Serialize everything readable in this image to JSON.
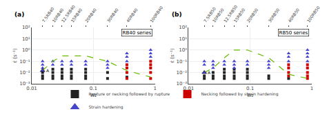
{
  "chart_data": [
    {
      "type": "scatter",
      "title": "(a)",
      "subtitle": "RB40 series",
      "xlabel": "w₂",
      "ylabel": "ε̇ (s⁻¹)",
      "log": true,
      "grid": true,
      "legend": "bottom",
      "xlim": [
        0.01,
        1.0
      ],
      "ylim": [
        0.001,
        100
      ],
      "xticks": [
        0.01,
        0.1,
        1
      ],
      "yticks": [
        {
          "value": 0.001,
          "label": "10⁻³"
        },
        {
          "value": 0.01,
          "label": "10⁻²"
        },
        {
          "value": 0.1,
          "label": "10⁻¹"
        },
        {
          "value": 1,
          "label": "10⁰"
        },
        {
          "value": 10,
          "label": "10¹"
        },
        {
          "value": 100,
          "label": "10²"
        }
      ],
      "x2ticks": [
        {
          "value": 0.015,
          "label": "7.5RB40"
        },
        {
          "value": 0.022,
          "label": "10RB40"
        },
        {
          "value": 0.031,
          "label": "12.5RB40"
        },
        {
          "value": 0.044,
          "label": "15RB40"
        },
        {
          "value": 0.075,
          "label": "20RB40"
        },
        {
          "value": 0.17,
          "label": "30RB40"
        },
        {
          "value": 0.35,
          "label": "40RB40"
        },
        {
          "value": 0.85,
          "label": "100RB40"
        }
      ],
      "series": [
        {
          "name": "Rupture or necking followed by rupture",
          "color": "#222222",
          "marker": "square",
          "x": [
            0.015,
            0.015,
            0.015,
            0.022,
            0.022,
            0.022,
            0.022,
            0.031,
            0.031,
            0.031,
            0.031,
            0.044,
            0.044,
            0.044,
            0.044,
            0.075,
            0.075,
            0.075,
            0.075,
            0.17,
            0.17,
            0.35
          ],
          "values": [
            0.003,
            0.005,
            0.01,
            0.003,
            0.005,
            0.01,
            0.02,
            0.003,
            0.005,
            0.01,
            0.02,
            0.003,
            0.005,
            0.01,
            0.02,
            0.003,
            0.005,
            0.01,
            0.02,
            0.003,
            0.01,
            0.004
          ]
        },
        {
          "name": "Necking followed by strain hardening",
          "color": "#cc0000",
          "marker": "square",
          "x": [
            0.35,
            0.35,
            0.35,
            0.35,
            0.85,
            0.85,
            0.85,
            0.85,
            0.85
          ],
          "values": [
            0.003,
            0.01,
            0.025,
            0.05,
            0.003,
            0.01,
            0.025,
            0.05,
            0.1
          ]
        },
        {
          "name": "Strain hardening",
          "color": "#4444cc",
          "marker": "triangle",
          "x": [
            0.015,
            0.015,
            0.015,
            0.022,
            0.022,
            0.031,
            0.031,
            0.044,
            0.044,
            0.075,
            0.075,
            0.17,
            0.17,
            0.17,
            0.35,
            0.35,
            0.35,
            0.85,
            0.85,
            0.85
          ],
          "values": [
            0.025,
            0.05,
            0.1,
            0.05,
            0.1,
            0.05,
            0.1,
            0.05,
            0.1,
            0.05,
            0.1,
            0.025,
            0.05,
            0.1,
            0.1,
            0.25,
            0.5,
            0.25,
            0.5,
            1.0
          ]
        },
        {
          "type": "line",
          "color": "#66bb00",
          "line_style": "dashed",
          "x": [
            0.015,
            0.022,
            0.031,
            0.044,
            0.075,
            0.17,
            0.35,
            0.85
          ],
          "values": [
            0.015,
            0.1,
            0.3,
            0.3,
            0.3,
            0.1,
            0.015,
            0.004
          ]
        }
      ],
      "annotations": [
        {
          "text": "A",
          "x": 0.015,
          "y": 0.015,
          "color": "#4444cc",
          "marker": "triangle"
        }
      ]
    },
    {
      "type": "scatter",
      "title": "(b)",
      "subtitle": "RB50 series",
      "xlabel": "w₂",
      "ylabel": "ε̇ (s⁻¹)",
      "log": true,
      "grid": true,
      "legend": "bottom",
      "xlim": [
        0.01,
        1.0
      ],
      "ylim": [
        0.001,
        100
      ],
      "xticks": [
        0.01,
        0.1,
        1
      ],
      "yticks": [
        {
          "value": 0.001,
          "label": "10⁻³"
        },
        {
          "value": 0.01,
          "label": "10⁻²"
        },
        {
          "value": 0.1,
          "label": "10⁻¹"
        },
        {
          "value": 1,
          "label": "10⁰"
        },
        {
          "value": 10,
          "label": "10¹"
        },
        {
          "value": 100,
          "label": "10²"
        }
      ],
      "x2ticks": [
        {
          "value": 0.018,
          "label": "7.5RB50"
        },
        {
          "value": 0.025,
          "label": "10RB50"
        },
        {
          "value": 0.038,
          "label": "12.5RB50"
        },
        {
          "value": 0.055,
          "label": "15RB50"
        },
        {
          "value": 0.09,
          "label": "20RB50"
        },
        {
          "value": 0.2,
          "label": "30RB50"
        },
        {
          "value": 0.42,
          "label": "40RB50"
        },
        {
          "value": 0.85,
          "label": "100RB50"
        }
      ],
      "series": [
        {
          "name": "Rupture or necking followed by rupture",
          "color": "#222222",
          "marker": "square",
          "x": [
            0.018,
            0.018,
            0.025,
            0.025,
            0.025,
            0.038,
            0.038,
            0.038,
            0.038,
            0.055,
            0.055,
            0.055,
            0.055,
            0.09,
            0.09,
            0.09,
            0.09,
            0.2,
            0.2,
            0.42
          ],
          "values": [
            0.003,
            0.005,
            0.003,
            0.005,
            0.01,
            0.003,
            0.005,
            0.01,
            0.02,
            0.003,
            0.005,
            0.01,
            0.02,
            0.003,
            0.005,
            0.01,
            0.02,
            0.003,
            0.005,
            0.003
          ]
        },
        {
          "name": "Necking followed by strain hardening",
          "color": "#cc0000",
          "marker": "square",
          "x": [
            0.42,
            0.42,
            0.42,
            0.42,
            0.85,
            0.85,
            0.85,
            0.85,
            0.85
          ],
          "values": [
            0.005,
            0.01,
            0.025,
            0.05,
            0.003,
            0.005,
            0.01,
            0.025,
            0.05
          ]
        },
        {
          "name": "Strain hardening",
          "color": "#4444cc",
          "marker": "triangle",
          "x": [
            0.018,
            0.018,
            0.018,
            0.025,
            0.025,
            0.025,
            0.038,
            0.038,
            0.055,
            0.055,
            0.055,
            0.09,
            0.09,
            0.2,
            0.2,
            0.2,
            0.42,
            0.42,
            0.42,
            0.85,
            0.85,
            0.85,
            0.85
          ],
          "values": [
            0.01,
            0.05,
            0.1,
            0.025,
            0.05,
            0.1,
            0.05,
            0.1,
            0.025,
            0.05,
            0.1,
            0.05,
            0.1,
            0.025,
            0.05,
            0.1,
            0.1,
            0.25,
            0.5,
            0.1,
            0.25,
            0.5,
            1.0
          ]
        },
        {
          "type": "line",
          "color": "#66bb00",
          "line_style": "dashed",
          "x": [
            0.018,
            0.025,
            0.038,
            0.055,
            0.09,
            0.2,
            0.42,
            0.85
          ],
          "values": [
            0.01,
            0.025,
            0.2,
            1.0,
            1.0,
            0.2,
            0.007,
            0.003
          ]
        }
      ],
      "annotations": [
        {
          "text": "A",
          "x": 0.018,
          "y": 0.01,
          "color": "#4444cc",
          "marker": "triangle"
        }
      ]
    }
  ]
}
